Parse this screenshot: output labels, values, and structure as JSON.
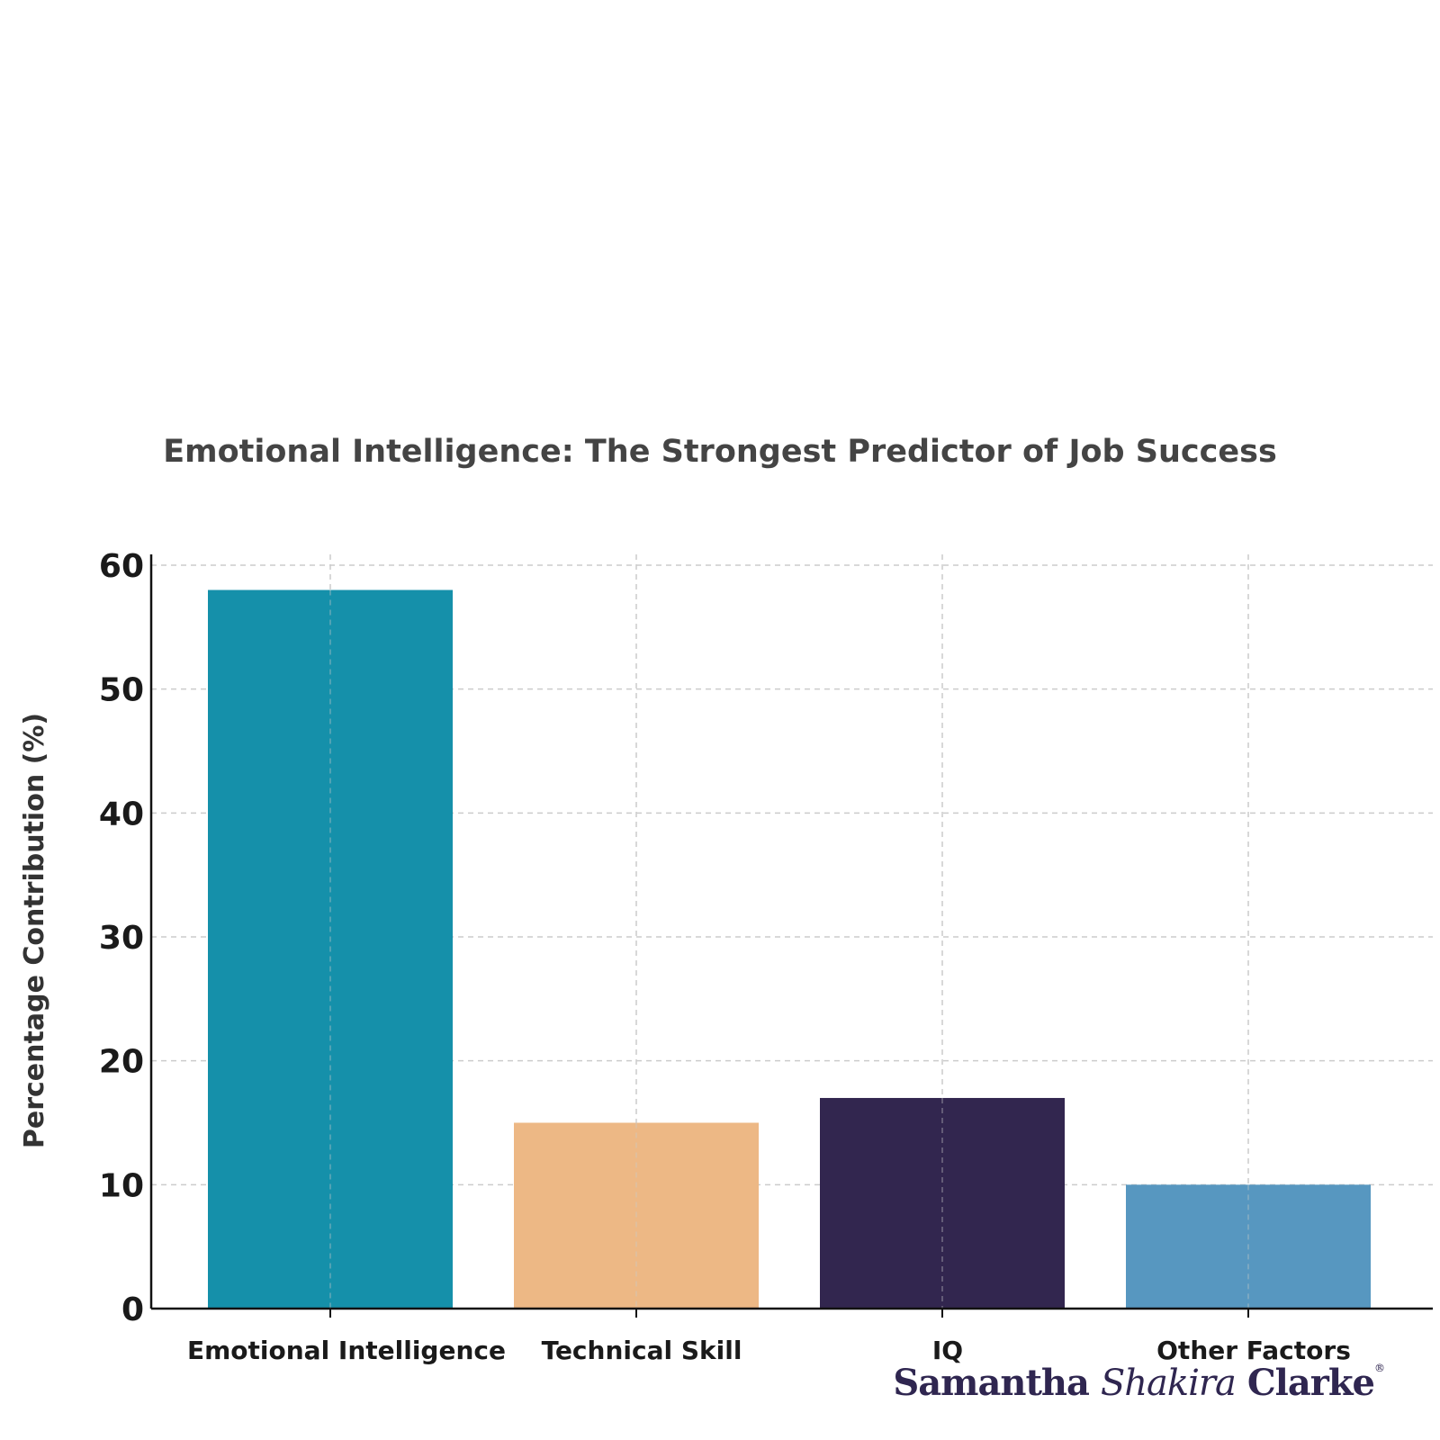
{
  "chart_data": {
    "type": "bar",
    "title": "Emotional Intelligence: The Strongest Predictor of Job Success",
    "xlabel": "",
    "ylabel": "Percentage Contribution (%)",
    "categories": [
      "Emotional Intelligence",
      "Technical Skill",
      "IQ",
      "Other Factors"
    ],
    "values": [
      58,
      15,
      17,
      10
    ],
    "colors": [
      "#1590aa",
      "#edb885",
      "#32264f",
      "#5797c0"
    ],
    "ylim": [
      0,
      60
    ],
    "yticks": [
      0,
      10,
      20,
      30,
      40,
      50,
      60
    ],
    "grid": true
  },
  "brand": {
    "first": "Samantha",
    "middle": "Shakira",
    "last": "Clarke",
    "mark": "®"
  }
}
